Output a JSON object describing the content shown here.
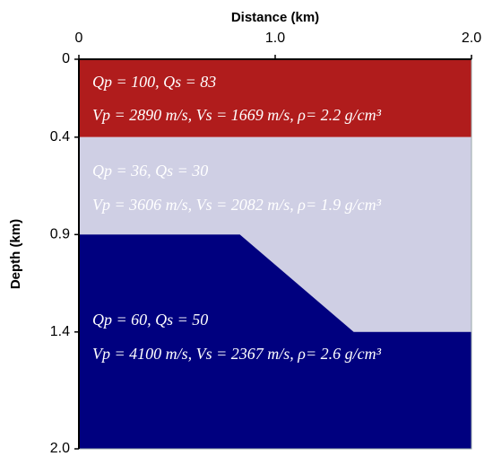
{
  "chart_data": {
    "type": "layers",
    "xlabel": "Distance (km)",
    "ylabel": "Depth (km)",
    "xlim": [
      0,
      2
    ],
    "ylim": [
      0,
      2
    ],
    "xticks": [
      0,
      {
        "value": 1,
        "label": "1.0"
      },
      {
        "value": 2,
        "label": "2.0"
      }
    ],
    "yticks": [
      0,
      0.4,
      0.9,
      1.4,
      {
        "value": 2,
        "label": "2.0"
      }
    ],
    "layers": [
      {
        "color": "#b01c1c",
        "lines": [
          "Qp = 100, Qs = 83",
          "Vp = 2890 m/s, Vs = 1669 m/s, ρ= 2.2 g/cm³"
        ],
        "polygon": [
          [
            0,
            0
          ],
          [
            2,
            0
          ],
          [
            2,
            0.4
          ],
          [
            0,
            0.4
          ]
        ]
      },
      {
        "color": "#cfcfe4",
        "lines": [
          "Qp = 36, Qs = 30",
          "Vp = 3606 m/s, Vs = 2082 m/s, ρ= 1.9 g/cm³"
        ],
        "polygon": [
          [
            0,
            0.4
          ],
          [
            2,
            0.4
          ],
          [
            2,
            1.4
          ],
          [
            1.4,
            1.4
          ],
          [
            0.82,
            0.9
          ],
          [
            0,
            0.9
          ]
        ]
      },
      {
        "color": "#00007f",
        "lines": [
          "Qp = 60, Qs = 50",
          "Vp = 4100 m/s, Vs = 2367 m/s, ρ= 2.6 g/cm³"
        ],
        "polygon": [
          [
            0,
            0.9
          ],
          [
            0.82,
            0.9
          ],
          [
            1.4,
            1.4
          ],
          [
            2,
            1.4
          ],
          [
            2,
            2
          ],
          [
            0,
            2
          ]
        ]
      }
    ]
  }
}
